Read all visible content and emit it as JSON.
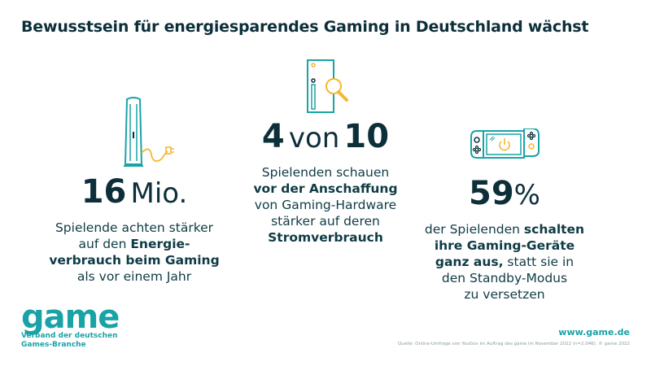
{
  "title": "Bewusstsein für energiesparendes Gaming in Deutschland wächst",
  "colors": {
    "teal": "#1aa3a6",
    "yellow": "#f5b731",
    "dark": "#0d2f3a"
  },
  "stats": [
    {
      "icon": "game-console-tower-with-plug-icon",
      "number": "16",
      "unit": "Mio.",
      "lines": [
        [
          {
            "t": "Spielende achten stärker",
            "b": false
          }
        ],
        [
          {
            "t": "auf den ",
            "b": false
          },
          {
            "t": "Energie-",
            "b": true
          }
        ],
        [
          {
            "t": "verbrauch beim Gaming",
            "b": true
          }
        ],
        [
          {
            "t": "als vor einem Jahr",
            "b": false
          }
        ]
      ]
    },
    {
      "icon": "console-with-magnifier-icon",
      "number": "4",
      "mid": "von",
      "number2": "10",
      "lines": [
        [
          {
            "t": "Spielenden schauen",
            "b": false
          }
        ],
        [
          {
            "t": "vor der Anschaffung",
            "b": true
          }
        ],
        [
          {
            "t": "von Gaming-Hardware",
            "b": false
          }
        ],
        [
          {
            "t": "stärker auf deren",
            "b": false
          }
        ],
        [
          {
            "t": "Stromverbrauch",
            "b": true
          }
        ]
      ]
    },
    {
      "icon": "handheld-console-power-icon",
      "number": "59",
      "unit": "%",
      "lines": [
        [
          {
            "t": "der Spielenden ",
            "b": false
          },
          {
            "t": "schalten",
            "b": true
          }
        ],
        [
          {
            "t": "ihre Gaming-Geräte",
            "b": true
          }
        ],
        [
          {
            "t": "ganz aus,",
            "b": true
          },
          {
            "t": " statt sie in",
            "b": false
          }
        ],
        [
          {
            "t": "den Standby-Modus",
            "b": false
          }
        ],
        [
          {
            "t": "zu versetzen",
            "b": false
          }
        ]
      ]
    }
  ],
  "footer": {
    "logo_word": "game",
    "logo_sub1": "Verband der deutschen",
    "logo_sub2": "Games-Branche",
    "website": "www.game.de",
    "source": "Quelle: Online-Umfrage von YouGov im Auftrag des game im November 2022 (n=2.046). © game 2022"
  }
}
